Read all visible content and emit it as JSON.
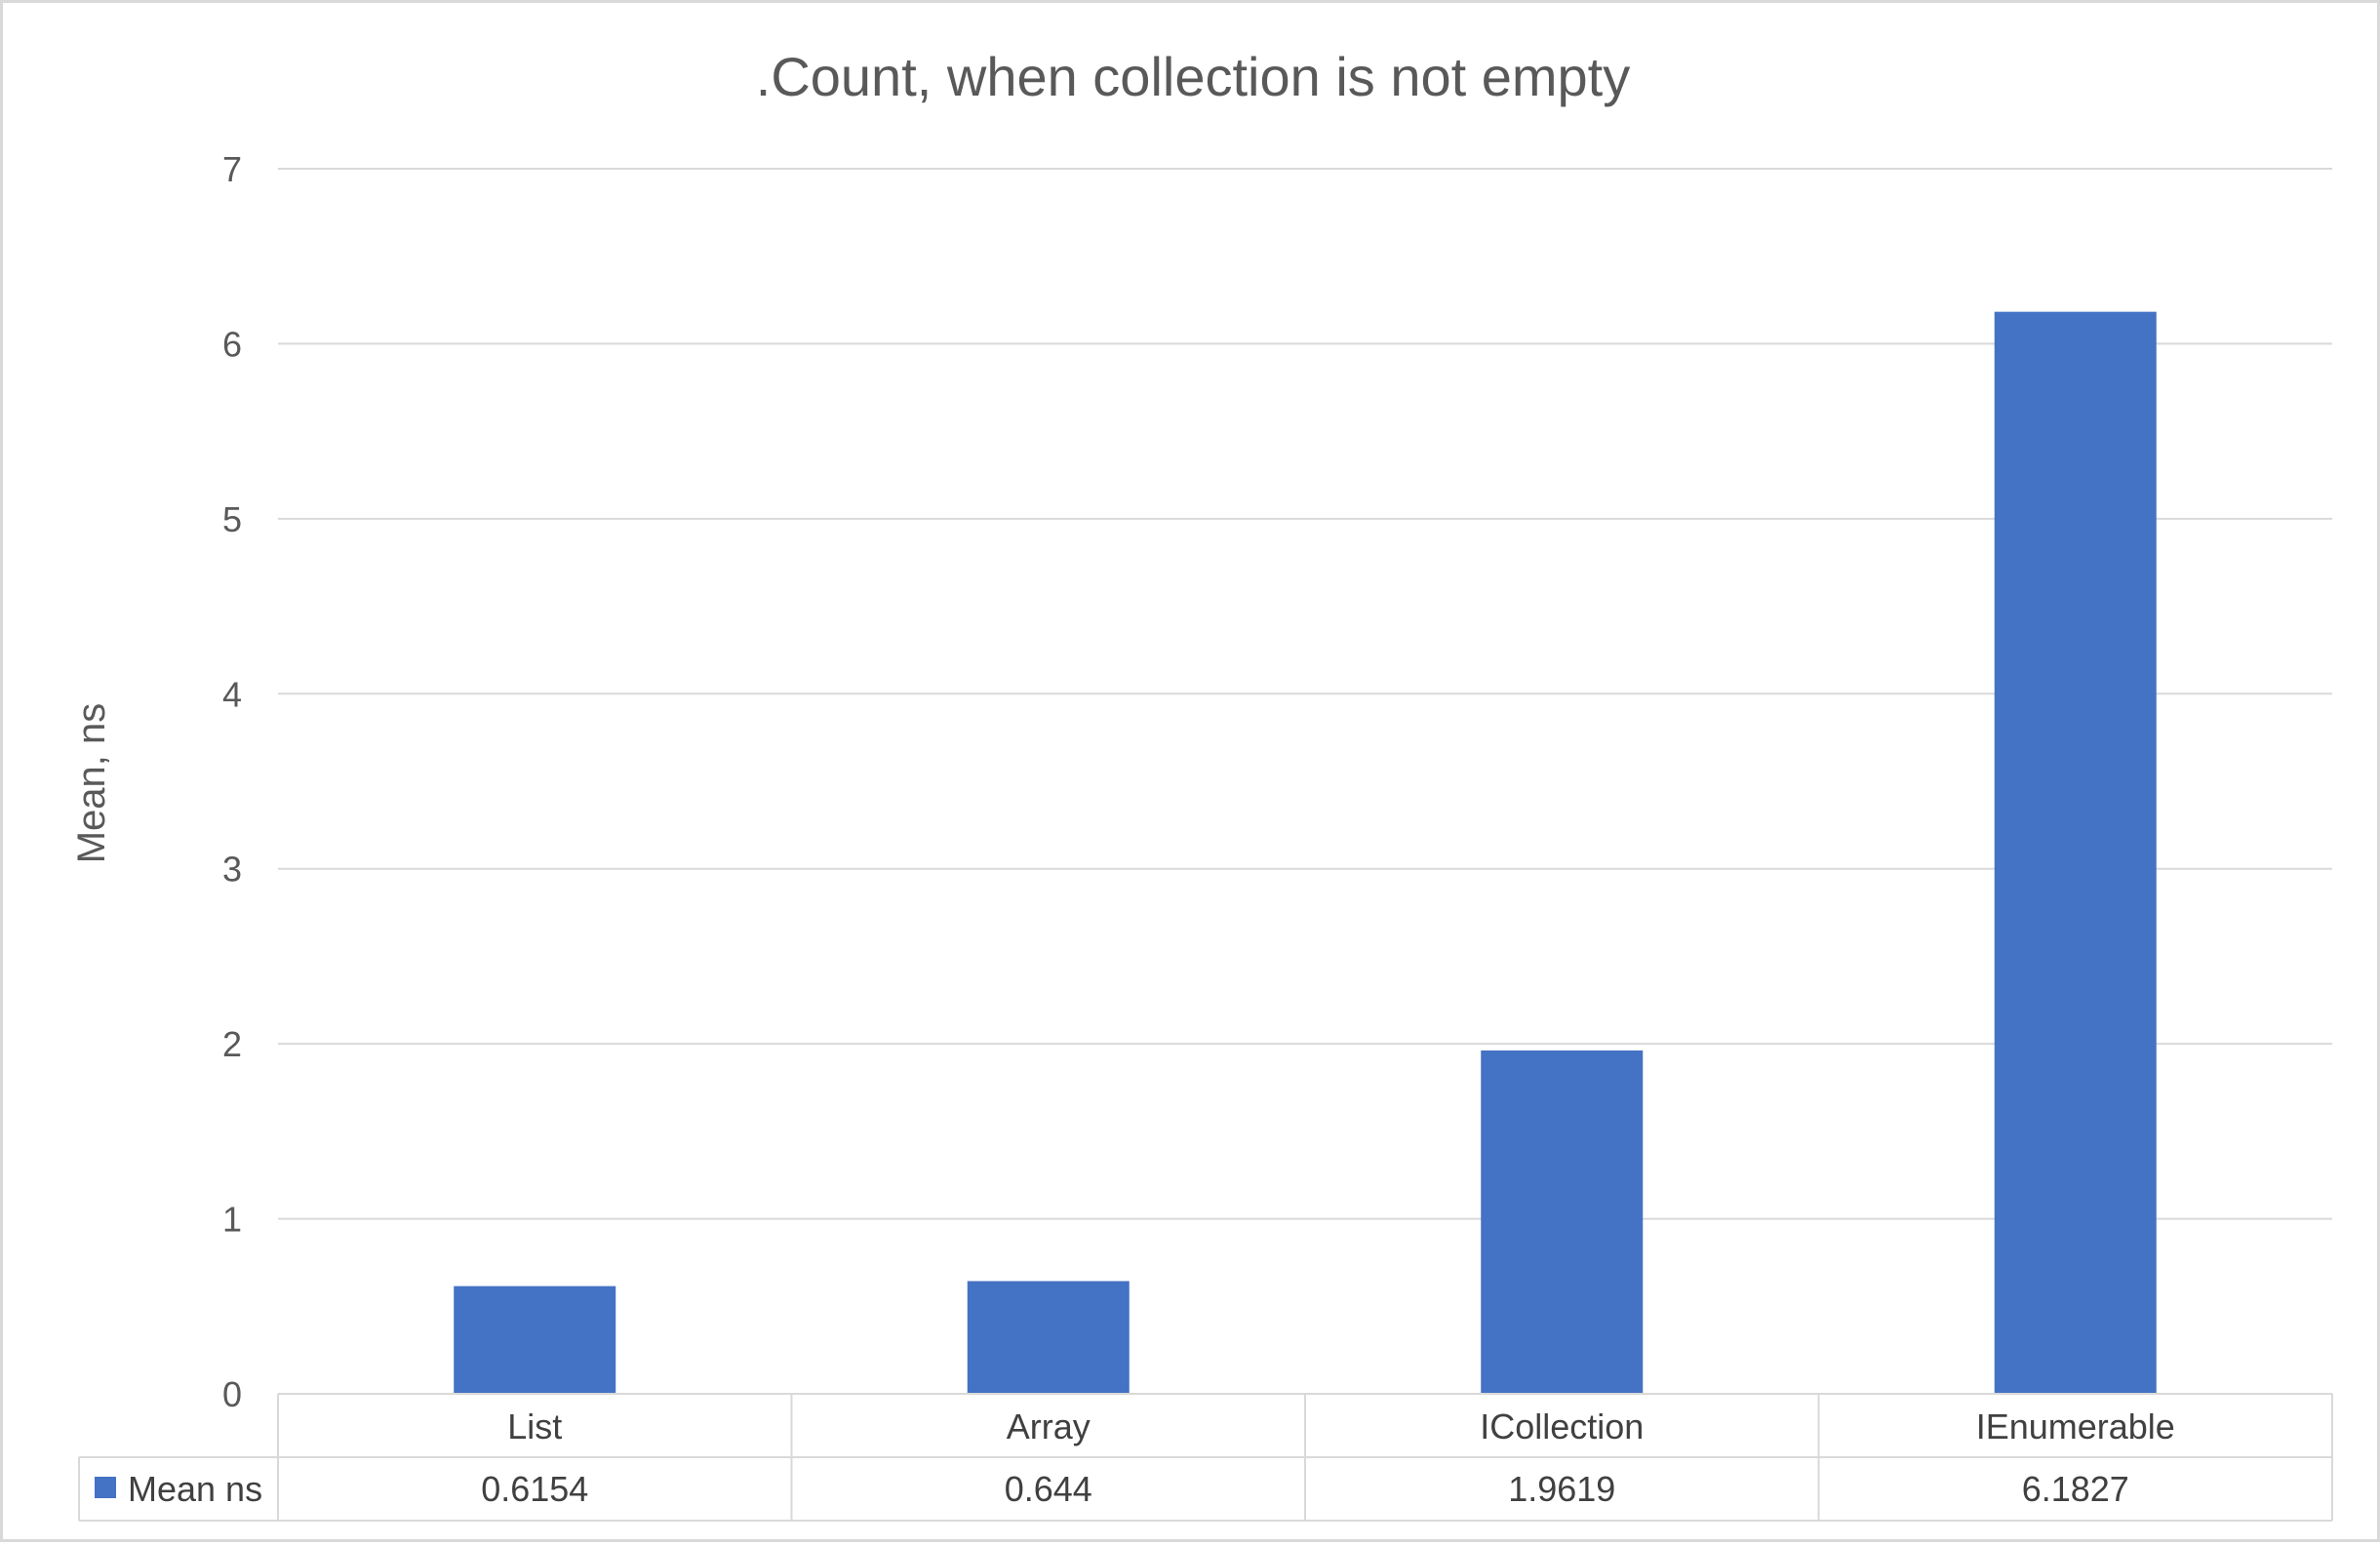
{
  "chart_data": {
    "type": "bar",
    "title": ".Count, when collection is not empty",
    "ylabel": "Mean, ns",
    "xlabel": "",
    "categories": [
      "List",
      "Array",
      "ICollection",
      "IEnumerable"
    ],
    "series": [
      {
        "name": "Mean ns",
        "values": [
          0.6154,
          0.644,
          1.9619,
          6.1827
        ],
        "labels": [
          "0.6154",
          "0.644",
          "1.9619",
          "6.1827"
        ],
        "color": "#4472c4"
      }
    ],
    "ylim": [
      0,
      7
    ],
    "yticks": [
      "0",
      "1",
      "2",
      "3",
      "4",
      "5",
      "6",
      "7"
    ],
    "grid": true,
    "legend": "data-table",
    "colors": {
      "gridline": "#d9d9d9",
      "text": "#595959",
      "bar": "#4472c4"
    }
  }
}
